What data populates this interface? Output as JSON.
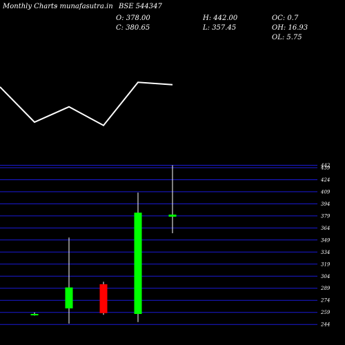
{
  "header": {
    "site_label": "Monthly Charts",
    "site_name": "- munafasutra.in",
    "symbol": "BSE 544347",
    "stats": {
      "open": "O: 378.00",
      "close": "C: 380.65",
      "high": "H: 442.00",
      "low": "L: 357.45",
      "oc": "OC: 0.7",
      "oh": "OH: 16.93",
      "ol": "OL: 5.75"
    }
  },
  "chart_data": [
    {
      "type": "line",
      "x": [
        1,
        2,
        3,
        4,
        5,
        6
      ],
      "values": [
        0.88,
        0.12,
        0.45,
        0.05,
        0.98,
        0.93
      ],
      "colors": {
        "line": "#ffffff",
        "background": "#000000"
      }
    },
    {
      "type": "candlestick",
      "categories": [
        "1",
        "2",
        "3",
        "4",
        "5"
      ],
      "candles": [
        {
          "open": 256,
          "close": 257,
          "high": 259,
          "low": 255
        },
        {
          "open": 264,
          "close": 290,
          "high": 352,
          "low": 245
        },
        {
          "open": 294,
          "close": 258,
          "high": 297,
          "low": 256
        },
        {
          "open": 257,
          "close": 383,
          "high": 408,
          "low": 247
        },
        {
          "open": 378,
          "close": 380.65,
          "high": 442,
          "low": 357.45
        }
      ],
      "ylim": [
        239,
        445
      ],
      "yticks": [
        442,
        439,
        424,
        409,
        394,
        379,
        364,
        349,
        334,
        319,
        304,
        289,
        274,
        259,
        244
      ],
      "grid": true,
      "colors": {
        "up": "#00ff00",
        "down": "#ff0000",
        "grid": "#1b1bd8",
        "wick": "#ffffff"
      }
    }
  ]
}
